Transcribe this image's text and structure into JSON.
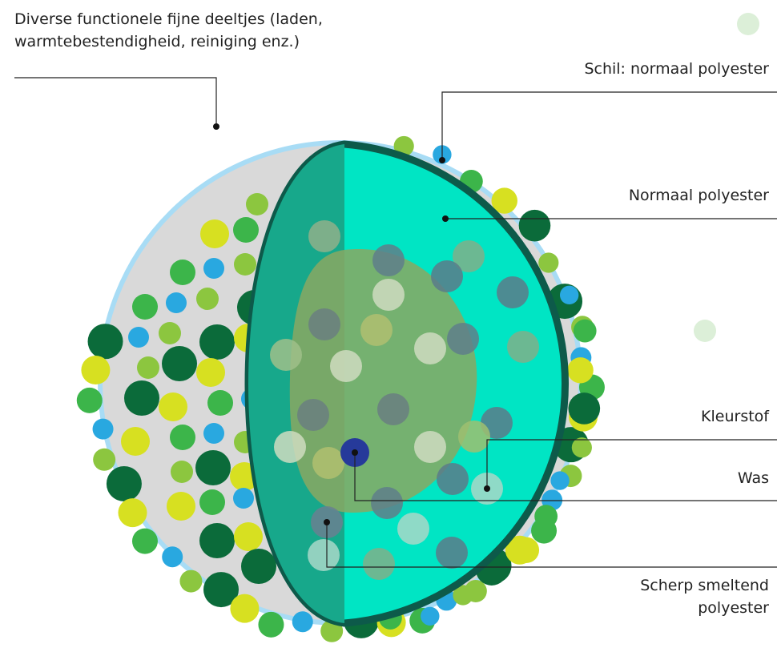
{
  "labels": {
    "particles": [
      "Diverse functionele fijne deeltjes (laden,",
      "warmtebestendigheid, reiniging enz.)"
    ],
    "shell": "Schil: normaal polyester",
    "core": "Normaal polyester",
    "dye": "Kleurstof",
    "wax": "Was",
    "sharp_melting": [
      "Scherp smeltend",
      "polyester"
    ]
  }
}
